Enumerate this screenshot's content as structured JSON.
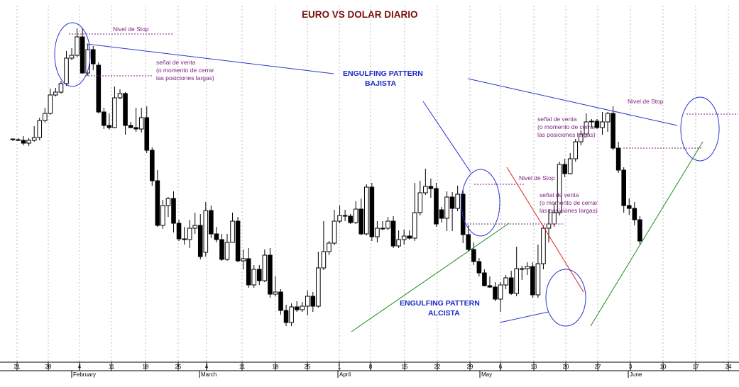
{
  "chart_data": {
    "type": "candlestick",
    "title": "EURO VS DOLAR DIARIO",
    "xlabel": "",
    "ylabel": "",
    "grid": true,
    "x_day_ticks": [
      "21",
      "28",
      "4",
      "11",
      "18",
      "25",
      "4",
      "11",
      "18",
      "25",
      "1",
      "8",
      "15",
      "22",
      "29",
      "6",
      "13",
      "20",
      "27",
      "3",
      "10",
      "17",
      "24"
    ],
    "x_month_ticks": [
      "February",
      "March",
      "April",
      "May",
      "June"
    ],
    "annotations": {
      "stop_1": "Nivel de Stop",
      "sell_signal_1": [
        "señal de venta",
        "(o momento de cerrar",
        "las posiciones largas)"
      ],
      "bearish_label": [
        "ENGULFING PATTERN",
        "BAJISTA"
      ],
      "stop_2": "Nivel de Stop",
      "sell_signal_2": [
        "señal de venta",
        "(o momento de cerrar",
        "las posiciones largas)"
      ],
      "stop_3": "Nivel de Stop",
      "sell_signal_3": [
        "señal de venta",
        "(o momento de cerrar",
        "las posiciones largas)"
      ],
      "bullish_label": [
        "ENGULFING PATTERN",
        "ALCISTA"
      ]
    },
    "candles": [
      [
        197,
        196,
        199,
        196
      ],
      [
        197,
        198,
        195,
        199
      ],
      [
        198,
        202,
        192,
        205
      ],
      [
        202,
        198,
        195,
        206
      ],
      [
        198,
        194,
        178,
        200
      ],
      [
        194,
        170,
        166,
        198
      ],
      [
        170,
        160,
        152,
        173
      ],
      [
        160,
        134,
        125,
        162
      ],
      [
        134,
        130,
        124,
        136
      ],
      [
        130,
        118,
        114,
        132
      ],
      [
        118,
        82,
        72,
        121
      ],
      [
        82,
        78,
        68,
        85
      ],
      [
        78,
        52,
        40,
        81
      ],
      [
        52,
        103,
        40,
        104
      ],
      [
        103,
        70,
        62,
        107
      ],
      [
        70,
        90,
        65,
        99
      ],
      [
        92,
        158,
        88,
        160
      ],
      [
        158,
        177,
        152,
        182
      ],
      [
        177,
        180,
        160,
        183
      ],
      [
        180,
        138,
        122,
        181
      ],
      [
        138,
        132,
        126,
        140
      ],
      [
        132,
        177,
        130,
        190
      ],
      [
        177,
        180,
        172,
        181
      ],
      [
        180,
        182,
        152,
        186
      ],
      [
        182,
        166,
        152,
        187
      ],
      [
        166,
        212,
        150,
        216
      ],
      [
        212,
        255,
        208,
        262
      ],
      [
        255,
        318,
        240,
        320
      ],
      [
        318,
        290,
        282,
        323
      ],
      [
        290,
        280,
        278,
        306
      ],
      [
        280,
        315,
        270,
        328
      ],
      [
        315,
        337,
        310,
        340
      ],
      [
        337,
        338,
        320,
        345
      ],
      [
        338,
        322,
        310,
        350
      ],
      [
        322,
        318,
        300,
        330
      ],
      [
        318,
        362,
        302,
        366
      ],
      [
        356,
        297,
        285,
        362
      ],
      [
        297,
        330,
        290,
        336
      ],
      [
        330,
        338,
        320,
        342
      ],
      [
        338,
        366,
        330,
        368
      ],
      [
        366,
        342,
        330,
        368
      ],
      [
        342,
        312,
        300,
        342
      ],
      [
        312,
        368,
        306,
        370
      ],
      [
        368,
        365,
        352,
        380
      ],
      [
        365,
        402,
        350,
        406
      ],
      [
        402,
        380,
        374,
        406
      ],
      [
        380,
        396,
        374,
        402
      ],
      [
        396,
        360,
        352,
        398
      ],
      [
        360,
        415,
        350,
        420
      ],
      [
        415,
        412,
        390,
        418
      ],
      [
        412,
        438,
        408,
        444
      ],
      [
        438,
        455,
        430,
        460
      ],
      [
        455,
        433,
        428,
        460
      ],
      [
        433,
        437,
        425,
        440
      ],
      [
        437,
        432,
        426,
        440
      ],
      [
        432,
        418,
        410,
        445
      ],
      [
        418,
        432,
        412,
        440
      ],
      [
        432,
        378,
        355,
        434
      ],
      [
        378,
        355,
        312,
        381
      ],
      [
        355,
        343,
        340,
        360
      ],
      [
        343,
        312,
        296,
        346
      ],
      [
        312,
        304,
        290,
        315
      ],
      [
        304,
        305,
        296,
        312
      ],
      [
        305,
        314,
        302,
        316
      ],
      [
        314,
        295,
        284,
        316
      ],
      [
        295,
        330,
        280,
        332
      ],
      [
        330,
        264,
        260,
        332
      ],
      [
        264,
        334,
        258,
        340
      ],
      [
        334,
        322,
        312,
        342
      ],
      [
        322,
        322,
        312,
        325
      ],
      [
        322,
        312,
        306,
        325
      ],
      [
        312,
        347,
        305,
        350
      ],
      [
        347,
        338,
        325,
        350
      ],
      [
        338,
        333,
        324,
        345
      ],
      [
        333,
        336,
        325,
        338
      ],
      [
        336,
        300,
        258,
        340
      ],
      [
        300,
        272,
        255,
        304
      ],
      [
        272,
        263,
        238,
        275
      ],
      [
        263,
        266,
        252,
        279
      ],
      [
        266,
        316,
        258,
        320
      ],
      [
        296,
        308,
        292,
        314
      ],
      [
        308,
        278,
        270,
        326
      ],
      [
        278,
        294,
        271,
        326
      ],
      [
        294,
        274,
        262,
        298
      ],
      [
        274,
        331,
        268,
        343
      ],
      [
        331,
        352,
        318,
        355
      ],
      [
        352,
        369,
        342,
        374
      ],
      [
        369,
        385,
        364,
        390
      ],
      [
        385,
        403,
        380,
        404
      ],
      [
        403,
        405,
        390,
        406
      ],
      [
        405,
        422,
        398,
        425
      ],
      [
        422,
        402,
        398,
        440
      ],
      [
        402,
        392,
        388,
        408
      ],
      [
        392,
        414,
        382,
        416
      ],
      [
        414,
        379,
        348,
        418
      ],
      [
        379,
        379,
        375,
        395
      ],
      [
        379,
        376,
        370,
        388
      ],
      [
        376,
        416,
        370,
        420
      ],
      [
        416,
        372,
        345,
        420
      ],
      [
        372,
        322,
        318,
        380
      ],
      [
        322,
        316,
        295,
        342
      ],
      [
        316,
        300,
        285,
        320
      ],
      [
        300,
        232,
        228,
        304
      ],
      [
        232,
        245,
        224,
        250
      ],
      [
        245,
        224,
        216,
        246
      ],
      [
        224,
        200,
        196,
        228
      ],
      [
        200,
        189,
        184,
        205
      ],
      [
        189,
        172,
        160,
        193
      ],
      [
        172,
        171,
        168,
        180
      ],
      [
        171,
        180,
        168,
        182
      ],
      [
        180,
        172,
        158,
        190
      ],
      [
        172,
        160,
        158,
        186
      ],
      [
        160,
        209,
        150,
        212
      ],
      [
        209,
        240,
        200,
        244
      ],
      [
        240,
        290,
        236,
        300
      ],
      [
        290,
        294,
        280,
        303
      ],
      [
        294,
        310,
        285,
        318
      ],
      [
        310,
        340,
        305,
        345
      ]
    ]
  }
}
